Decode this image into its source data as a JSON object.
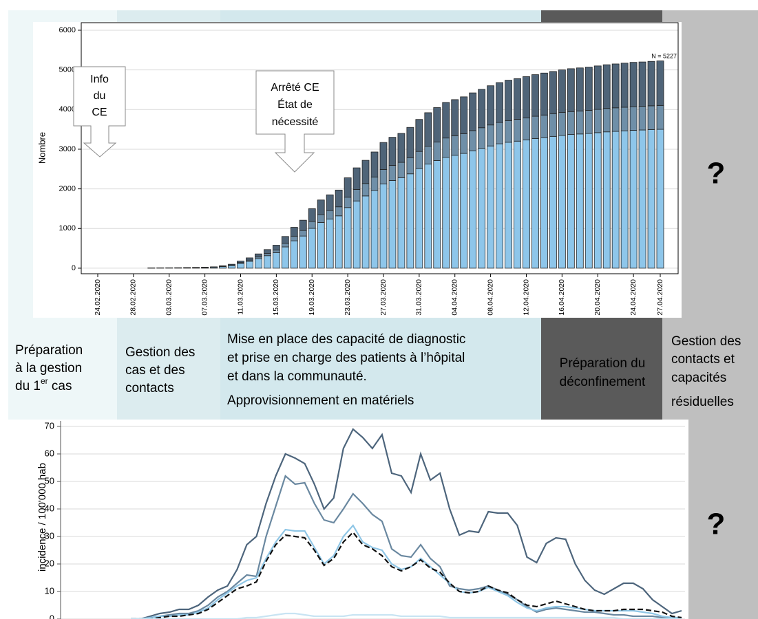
{
  "chart_data": [
    {
      "type": "bar",
      "stacked": true,
      "y_label": "Nombre",
      "categories": [
        "24.02.2020",
        null,
        null,
        null,
        "28.02.2020",
        null,
        null,
        null,
        "03.03.2020",
        null,
        null,
        null,
        "07.03.2020",
        null,
        null,
        null,
        "11.03.2020",
        null,
        null,
        null,
        "15.03.2020",
        null,
        null,
        null,
        "19.03.2020",
        null,
        null,
        null,
        "23.03.2020",
        null,
        null,
        null,
        "27.03.2020",
        null,
        null,
        null,
        "31.03.2020",
        null,
        null,
        null,
        "04.04.2020",
        null,
        null,
        null,
        "08.04.2020",
        null,
        null,
        null,
        "12.04.2020",
        null,
        null,
        null,
        "16.04.2020",
        null,
        null,
        null,
        "20.04.2020",
        null,
        null,
        null,
        "24.04.2020",
        null,
        null,
        "27.04.2020"
      ],
      "series": [
        {
          "color": "#8ec6ea",
          "values": [
            0,
            0,
            0,
            0,
            0,
            0,
            3,
            5,
            7,
            8,
            10,
            13,
            17,
            23,
            40,
            67,
            121,
            174,
            241,
            315,
            389,
            536,
            690,
            811,
            1005,
            1152,
            1240,
            1320,
            1528,
            1695,
            1822,
            1963,
            2124,
            2211,
            2278,
            2379,
            2513,
            2626,
            2714,
            2801,
            2848,
            2894,
            2961,
            3022,
            3082,
            3136,
            3176,
            3203,
            3236,
            3270,
            3296,
            3323,
            3350,
            3370,
            3384,
            3397,
            3417,
            3437,
            3451,
            3464,
            3477,
            3484,
            3494,
            3502
          ]
        },
        {
          "color": "#6f8fa8",
          "values": [
            0,
            0,
            0,
            0,
            0,
            0,
            1,
            1,
            1,
            1,
            2,
            2,
            3,
            4,
            7,
            12,
            21,
            30,
            41,
            54,
            67,
            92,
            118,
            139,
            173,
            198,
            213,
            227,
            262,
            291,
            313,
            337,
            365,
            380,
            391,
            408,
            431,
            451,
            466,
            481,
            489,
            497,
            508,
            519,
            529,
            538,
            545,
            550,
            555,
            561,
            566,
            570,
            575,
            578,
            581,
            583,
            587,
            590,
            592,
            595,
            597,
            598,
            600,
            601
          ]
        },
        {
          "color": "#4f6478",
          "values": [
            0,
            0,
            0,
            0,
            0,
            0,
            1,
            2,
            2,
            3,
            3,
            5,
            5,
            8,
            13,
            21,
            38,
            56,
            78,
            101,
            124,
            172,
            222,
            260,
            322,
            370,
            397,
            423,
            490,
            544,
            585,
            630,
            681,
            709,
            731,
            763,
            806,
            843,
            870,
            898,
            913,
            929,
            951,
            969,
            989,
            1006,
            1019,
            1027,
            1039,
            1049,
            1058,
            1067,
            1075,
            1082,
            1085,
            1090,
            1096,
            1103,
            1107,
            1111,
            1116,
            1118,
            1121,
            1124
          ]
        }
      ],
      "ylim": [
        -140,
        6190
      ],
      "yticks": [
        0,
        1000,
        2000,
        3000,
        4000,
        5000,
        6000
      ],
      "grid": true,
      "note": "N = 5227",
      "callouts": [
        {
          "lines": [
            "Info",
            "du",
            "CE"
          ]
        },
        {
          "lines": [
            "Arrêté CE",
            "État de",
            "nécessité"
          ]
        }
      ]
    },
    {
      "type": "line",
      "y_label": "incidence / 100'000 hab",
      "series": [
        {
          "color": "#4d657c",
          "values": [
            0,
            0,
            1,
            2,
            2.5,
            3.5,
            3.5,
            5,
            8,
            10.5,
            12,
            18,
            27,
            30,
            42,
            52,
            60,
            58.5,
            56.5,
            49,
            40,
            44,
            62,
            69,
            66,
            62,
            67,
            53,
            52,
            46,
            60,
            50.5,
            53,
            40,
            30.5,
            32,
            31.5,
            39,
            38.5,
            38.5,
            34,
            22.5,
            20.5,
            27.5,
            29.5,
            29,
            20,
            14,
            10.5,
            9,
            11,
            13,
            13,
            11,
            7,
            4.5,
            2,
            3
          ]
        },
        {
          "color": "#6a88a0",
          "values": [
            0,
            0,
            0.5,
            1,
            1.5,
            2,
            2,
            3,
            5,
            8,
            10,
            13,
            16,
            15.5,
            30,
            41,
            52,
            49,
            49.5,
            42,
            36,
            35,
            40,
            45.5,
            42,
            38,
            35.5,
            25.5,
            23,
            22.5,
            27,
            22,
            19,
            12,
            11,
            10.5,
            11,
            12,
            10.5,
            9,
            7,
            4.5,
            2.5,
            3.5,
            4,
            3.5,
            3,
            2.5,
            2.5,
            2,
            1.5,
            1.5,
            1,
            1,
            1,
            0.5,
            0.5,
            0
          ]
        },
        {
          "color": "#8fc6e6",
          "values": [
            0,
            0,
            0.5,
            1,
            1,
            1.5,
            1.5,
            2.5,
            4,
            7,
            9.5,
            12,
            14,
            15,
            22,
            28,
            32.5,
            32,
            32,
            26,
            20,
            23,
            30,
            34,
            28,
            26,
            25,
            20,
            18,
            19,
            22,
            19,
            16,
            13,
            10,
            9.5,
            10,
            11.5,
            10,
            8.5,
            6,
            4,
            3,
            4,
            4.5,
            4.5,
            4,
            3.5,
            3,
            3,
            3,
            3,
            3,
            2.5,
            2,
            1,
            0.5,
            0.5
          ]
        },
        {
          "color": "#111111",
          "dashed": true,
          "values": [
            0,
            0,
            0,
            0.5,
            1,
            1,
            1.5,
            2,
            3.5,
            6,
            8.5,
            11,
            12,
            13.5,
            21,
            27,
            30.5,
            30,
            29.5,
            25,
            19.5,
            22,
            28,
            31.5,
            27,
            25.5,
            23,
            19,
            17.5,
            19,
            21.5,
            18.5,
            17,
            13,
            10,
            9.5,
            10,
            12,
            10.5,
            9.5,
            7,
            5,
            4.5,
            5.5,
            6.5,
            5.5,
            4.5,
            3.5,
            3,
            3,
            3,
            3.5,
            3.5,
            3.5,
            3,
            2.5,
            1,
            0.5
          ]
        },
        {
          "color": "#c8e4f3",
          "values": [
            0,
            0,
            0,
            0,
            0,
            0,
            0,
            0,
            0,
            0,
            0,
            0,
            0.5,
            0.5,
            1,
            1.5,
            2,
            2,
            1.5,
            1,
            1,
            1,
            1,
            1.5,
            1.5,
            1.5,
            1.5,
            1.5,
            1,
            1,
            1,
            1,
            1,
            0.5,
            0.5,
            0.5,
            0.5,
            0.5,
            0.5,
            0.5,
            0.5,
            0.5,
            0.5,
            0.5,
            0.5,
            0.5,
            0.5,
            0.5,
            0.5,
            0.5,
            0.5,
            0,
            0,
            0,
            0,
            0,
            0,
            0
          ]
        }
      ],
      "ylim": [
        0,
        72
      ],
      "yticks": [
        0,
        10,
        20,
        30,
        40,
        50,
        60,
        70
      ],
      "grid": true
    }
  ],
  "phases": [
    {
      "lines": [
        "Préparation",
        "à la gestion"
      ],
      "last_line": [
        "du 1",
        "er",
        " cas"
      ]
    },
    {
      "lines": [
        "Gestion des",
        "cas et des",
        "contacts"
      ]
    },
    {
      "lines": [
        "Mise en place des capacité de diagnostic",
        "et prise en charge des patients à l’hôpital",
        "et dans la communauté.",
        "Approvisionnement  en matériels"
      ]
    },
    {
      "lines": [
        "Préparation du",
        "déconfinement"
      ]
    },
    {
      "lines": [
        "Gestion des",
        "contacts et",
        "capacités",
        "résiduelles"
      ]
    }
  ],
  "unknown_marks": [
    "?",
    "?"
  ]
}
